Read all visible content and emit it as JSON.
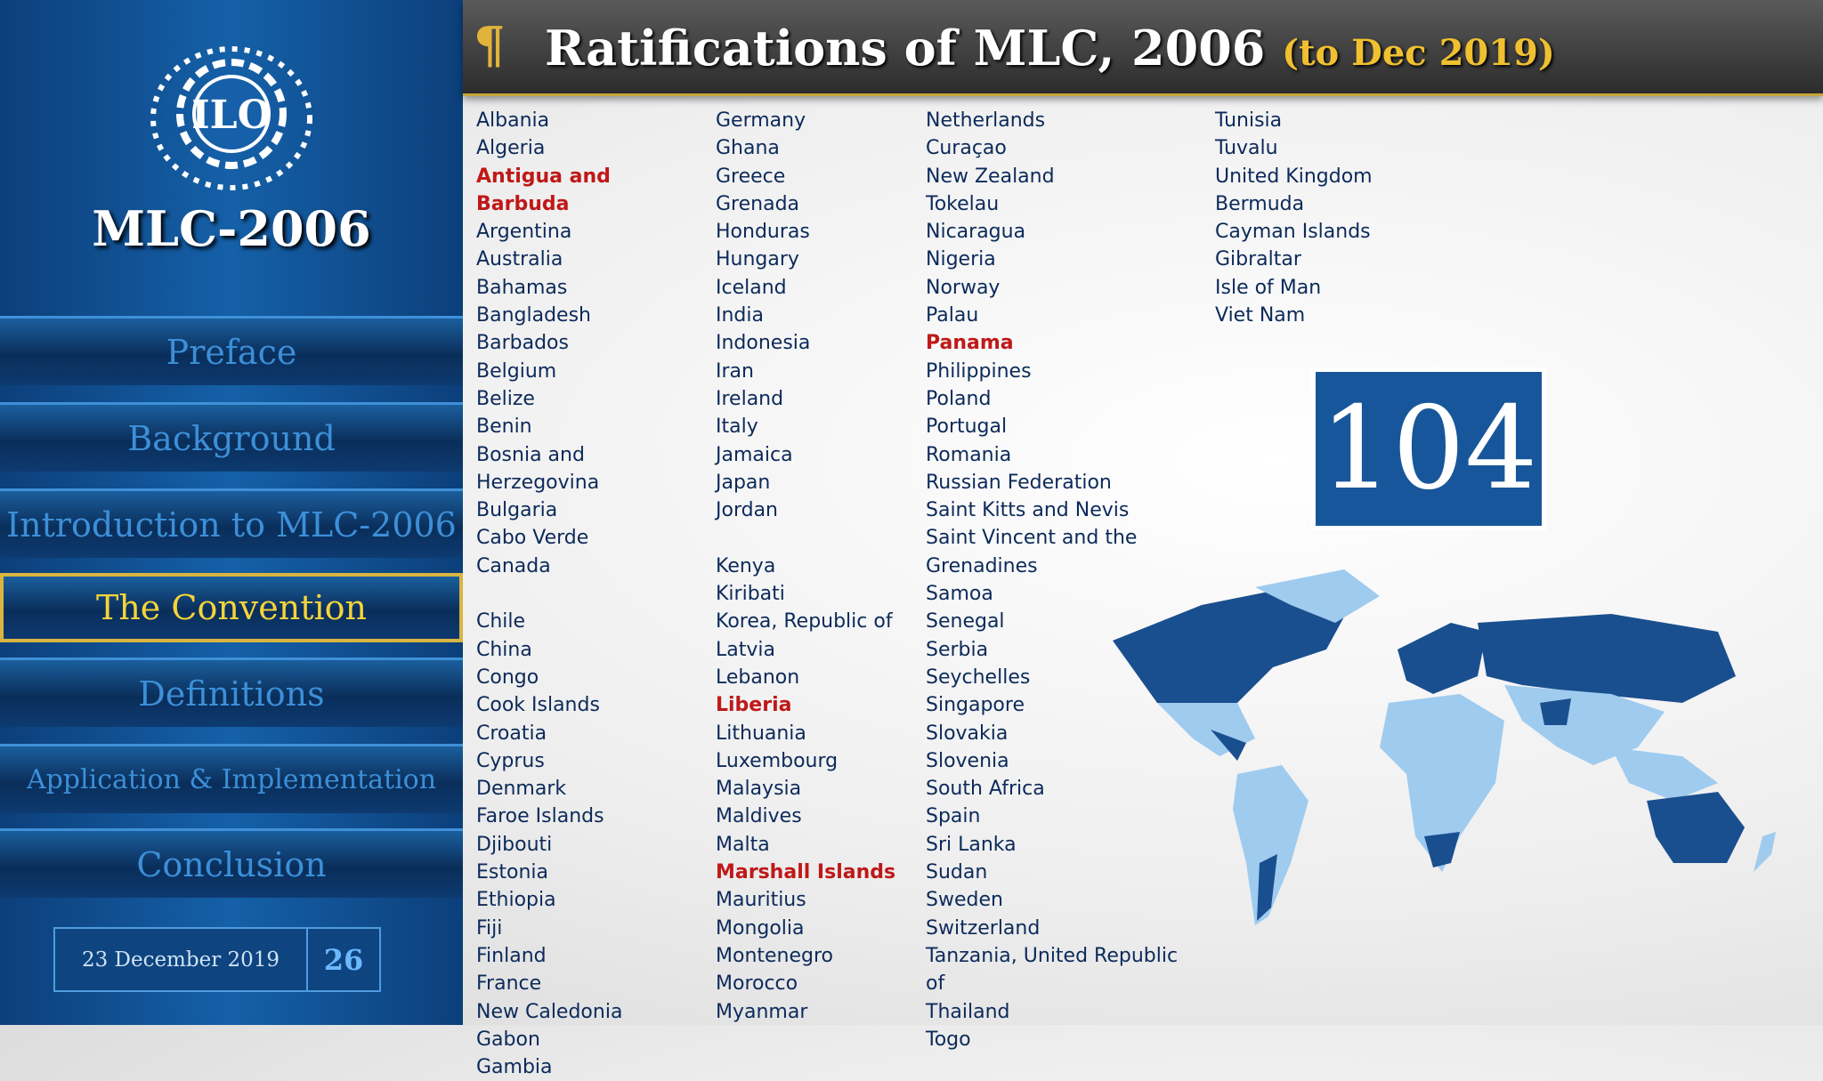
{
  "sidebar": {
    "logo_text": "ILO",
    "title": "MLC-2006",
    "nav": [
      {
        "label": "Preface"
      },
      {
        "label": "Background"
      },
      {
        "label": "Introduction to MLC-2006"
      },
      {
        "label": "The Convention",
        "active": true
      },
      {
        "label": "Definitions"
      },
      {
        "label": "Application & Implementation",
        "small": true
      },
      {
        "label": "Conclusion"
      }
    ],
    "date": "23 December 2019",
    "page_number": "26"
  },
  "header": {
    "icon": "¶",
    "title": "Ratifications of MLC, 2006",
    "subtitle": "(to Dec 2019)"
  },
  "total": "104",
  "country_list": {
    "columns": [
      {
        "groups": [
          [
            {
              "name": "Albania"
            },
            {
              "name": "Algeria"
            },
            {
              "name": "Antigua and Barbuda",
              "highlighted": true
            },
            {
              "name": "Argentina"
            },
            {
              "name": "Australia"
            },
            {
              "name": "Bahamas"
            },
            {
              "name": "Bangladesh"
            },
            {
              "name": "Barbados"
            },
            {
              "name": "Belgium"
            },
            {
              "name": "Belize"
            },
            {
              "name": "Benin"
            },
            {
              "name": "Bosnia and Herzegovina"
            },
            {
              "name": "Bulgaria"
            },
            {
              "name": "Cabo Verde"
            },
            {
              "name": "Canada"
            }
          ],
          [
            {
              "name": "Chile"
            },
            {
              "name": "China"
            },
            {
              "name": "Congo"
            },
            {
              "name": "Cook Islands"
            },
            {
              "name": "Croatia"
            },
            {
              "name": "Cyprus"
            },
            {
              "name": "Denmark"
            },
            {
              "name": "Faroe Islands"
            },
            {
              "name": "Djibouti"
            },
            {
              "name": "Estonia"
            },
            {
              "name": "Ethiopia"
            },
            {
              "name": "Fiji"
            },
            {
              "name": "Finland"
            },
            {
              "name": "France"
            },
            {
              "name": "New Caledonia"
            },
            {
              "name": "Gabon"
            },
            {
              "name": "Gambia"
            }
          ]
        ]
      },
      {
        "groups": [
          [
            {
              "name": "Germany"
            },
            {
              "name": "Ghana"
            },
            {
              "name": "Greece"
            },
            {
              "name": "Grenada"
            },
            {
              "name": "Honduras"
            },
            {
              "name": "Hungary"
            },
            {
              "name": "Iceland"
            },
            {
              "name": "India"
            },
            {
              "name": "Indonesia"
            },
            {
              "name": "Iran"
            },
            {
              "name": "Ireland"
            },
            {
              "name": "Italy"
            },
            {
              "name": "Jamaica"
            },
            {
              "name": "Japan"
            },
            {
              "name": "Jordan"
            }
          ],
          [
            {
              "name": "Kenya"
            },
            {
              "name": "Kiribati"
            },
            {
              "name": "Korea, Republic of"
            },
            {
              "name": "Latvia"
            },
            {
              "name": "Lebanon"
            },
            {
              "name": "Liberia",
              "highlighted": true
            },
            {
              "name": "Lithuania"
            },
            {
              "name": "Luxembourg"
            },
            {
              "name": "Malaysia"
            },
            {
              "name": "Maldives"
            },
            {
              "name": "Malta"
            },
            {
              "name": "Marshall Islands",
              "highlighted": true
            },
            {
              "name": "Mauritius"
            },
            {
              "name": "Mongolia"
            },
            {
              "name": "Montenegro"
            },
            {
              "name": "Morocco"
            },
            {
              "name": "Myanmar"
            }
          ]
        ]
      },
      {
        "groups": [
          [
            {
              "name": "Netherlands"
            },
            {
              "name": "Curaçao"
            },
            {
              "name": "New Zealand"
            },
            {
              "name": "Tokelau"
            },
            {
              "name": "Nicaragua"
            },
            {
              "name": "Nigeria"
            },
            {
              "name": "Norway"
            },
            {
              "name": "Palau"
            },
            {
              "name": "Panama",
              "highlighted": true
            },
            {
              "name": "Philippines"
            },
            {
              "name": "Poland"
            },
            {
              "name": "Portugal"
            },
            {
              "name": "Romania"
            },
            {
              "name": "Russian Federation"
            },
            {
              "name": "Saint Kitts and Nevis"
            },
            {
              "name": "Saint Vincent and the Grenadines"
            },
            {
              "name": "Samoa"
            },
            {
              "name": "Senegal"
            },
            {
              "name": "Serbia"
            },
            {
              "name": "Seychelles"
            },
            {
              "name": "Singapore"
            },
            {
              "name": "Slovakia"
            },
            {
              "name": "Slovenia"
            },
            {
              "name": "South Africa"
            },
            {
              "name": "Spain"
            },
            {
              "name": "Sri Lanka"
            },
            {
              "name": "Sudan"
            },
            {
              "name": "Sweden"
            },
            {
              "name": "Switzerland"
            },
            {
              "name": "Tanzania, United Republic of"
            },
            {
              "name": "Thailand"
            },
            {
              "name": "Togo"
            }
          ]
        ]
      },
      {
        "groups": [
          [
            {
              "name": "Tunisia"
            },
            {
              "name": "Tuvalu"
            },
            {
              "name": "United Kingdom"
            },
            {
              "name": "Bermuda"
            },
            {
              "name": "Cayman Islands"
            },
            {
              "name": "Gibraltar"
            },
            {
              "name": "Isle of Man"
            },
            {
              "name": "Viet Nam"
            }
          ]
        ]
      }
    ]
  }
}
